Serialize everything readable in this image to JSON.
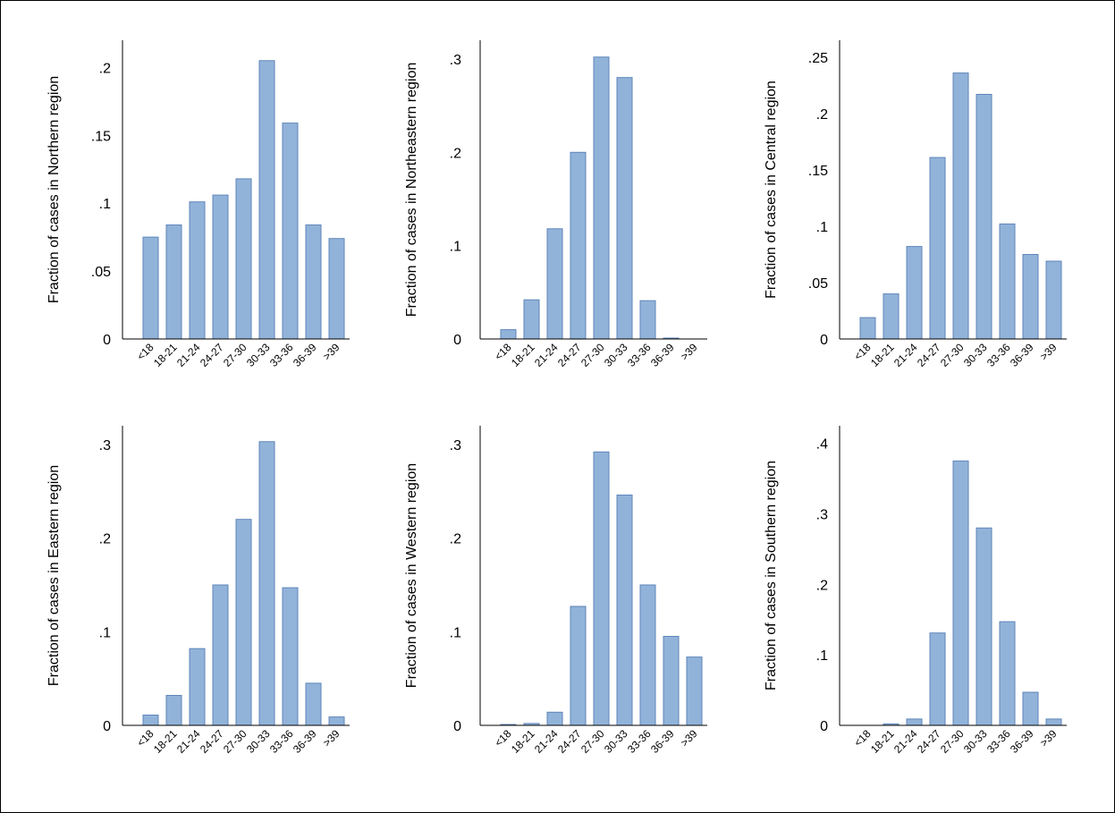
{
  "chart_data": [
    {
      "type": "bar",
      "ylabel": "Fraction of cases in  Northern region",
      "categories": [
        "<18",
        "18-21",
        "21-24",
        "24-27",
        "27-30",
        "30-33",
        "33-36",
        "36-39",
        ">39"
      ],
      "values": [
        0.075,
        0.084,
        0.101,
        0.106,
        0.118,
        0.205,
        0.159,
        0.084,
        0.074
      ],
      "yticks": [
        0,
        0.05,
        0.1,
        0.15,
        0.2
      ],
      "ytick_labels": [
        "0",
        ".05",
        ".1",
        ".15",
        ".2"
      ],
      "ylim": [
        0,
        0.22
      ],
      "grid": false
    },
    {
      "type": "bar",
      "ylabel": "Fraction of cases in  Northeastern region",
      "categories": [
        "<18",
        "18-21",
        "21-24",
        "24-27",
        "27-30",
        "30-33",
        "33-36",
        "36-39",
        ">39"
      ],
      "values": [
        0.01,
        0.042,
        0.118,
        0.2,
        0.302,
        0.28,
        0.041,
        0.001,
        0.0
      ],
      "yticks": [
        0,
        0.1,
        0.2,
        0.3
      ],
      "ytick_labels": [
        "0",
        ".1",
        ".2",
        ".3"
      ],
      "ylim": [
        0,
        0.32
      ],
      "grid": false
    },
    {
      "type": "bar",
      "ylabel": "Fraction of cases in  Central region",
      "categories": [
        "<18",
        "18-21",
        "21-24",
        "24-27",
        "27-30",
        "30-33",
        "33-36",
        "36-39",
        ">39"
      ],
      "values": [
        0.019,
        0.04,
        0.082,
        0.161,
        0.236,
        0.217,
        0.102,
        0.075,
        0.069
      ],
      "yticks": [
        0,
        0.05,
        0.1,
        0.15,
        0.2,
        0.25
      ],
      "ytick_labels": [
        "0",
        ".05",
        ".1",
        ".15",
        ".2",
        ".25"
      ],
      "ylim": [
        0,
        0.265
      ],
      "grid": false
    },
    {
      "type": "bar",
      "ylabel": "Fraction of cases in  Eastern region",
      "categories": [
        "<18",
        "18-21",
        "21-24",
        "24-27",
        "27-30",
        "30-33",
        "33-36",
        "36-39",
        ">39"
      ],
      "values": [
        0.011,
        0.032,
        0.082,
        0.15,
        0.22,
        0.303,
        0.147,
        0.045,
        0.009
      ],
      "yticks": [
        0,
        0.1,
        0.2,
        0.3
      ],
      "ytick_labels": [
        "0",
        ".1",
        ".2",
        ".3"
      ],
      "ylim": [
        0,
        0.32
      ],
      "grid": false
    },
    {
      "type": "bar",
      "ylabel": "Fraction of cases in  Western region",
      "categories": [
        "<18",
        "18-21",
        "21-24",
        "24-27",
        "27-30",
        "30-33",
        "33-36",
        "36-39",
        ">39"
      ],
      "values": [
        0.001,
        0.002,
        0.014,
        0.127,
        0.292,
        0.246,
        0.15,
        0.095,
        0.073
      ],
      "yticks": [
        0,
        0.1,
        0.2,
        0.3
      ],
      "ytick_labels": [
        "0",
        ".1",
        ".2",
        ".3"
      ],
      "ylim": [
        0,
        0.32
      ],
      "grid": false
    },
    {
      "type": "bar",
      "ylabel": "Fraction of cases in  Southern region",
      "categories": [
        "<18",
        "18-21",
        "21-24",
        "24-27",
        "27-30",
        "30-33",
        "33-36",
        "36-39",
        ">39"
      ],
      "values": [
        0.0,
        0.002,
        0.009,
        0.131,
        0.375,
        0.28,
        0.147,
        0.047,
        0.009
      ],
      "yticks": [
        0,
        0.1,
        0.2,
        0.3,
        0.4
      ],
      "ytick_labels": [
        "0",
        ".1",
        ".2",
        ".3",
        ".4"
      ],
      "ylim": [
        0,
        0.425
      ],
      "grid": false
    }
  ],
  "colors": {
    "bar_fill": "#92b3d9",
    "bar_stroke": "#5f86ba",
    "axis": "#000000"
  }
}
